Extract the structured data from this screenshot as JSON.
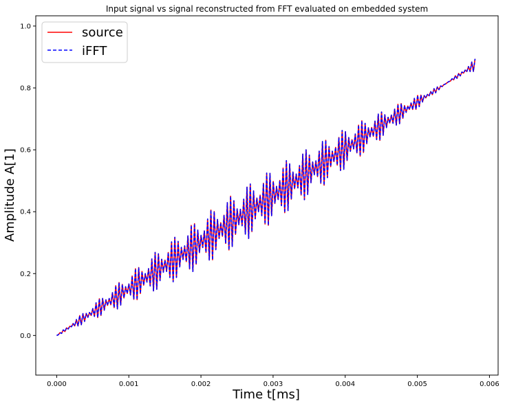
{
  "chart_data": {
    "type": "line",
    "title": "Input signal vs signal reconstructed from FFT evaluated on embedded system",
    "xlabel": "Time t[ms]",
    "ylabel": "Amplitude A[1]",
    "xlim": [
      -0.00029,
      0.00612
    ],
    "ylim": [
      -0.128,
      1.0331
    ],
    "xticks": [
      0.0,
      0.001,
      0.002,
      0.003,
      0.004,
      0.005,
      0.006
    ],
    "xtick_labels": [
      "0.000",
      "0.001",
      "0.002",
      "0.003",
      "0.004",
      "0.005",
      "0.006"
    ],
    "yticks": [
      0.0,
      0.2,
      0.4,
      0.6,
      0.8,
      1.0
    ],
    "ytick_labels": [
      "0.0",
      "0.2",
      "0.4",
      "0.6",
      "0.8",
      "1.0"
    ],
    "grid": false,
    "legend_position": "top-left",
    "signal_model": {
      "x_start": 0.0,
      "x_end": 0.0058,
      "sample_count": 256,
      "trend_start": 0.0,
      "trend_end": 0.875,
      "fast_component": {
        "amplitude": 0.055,
        "period": 4.53e-05
      },
      "beat_component": {
        "amplitude": 0.04,
        "period": 0.00026
      }
    },
    "series": [
      {
        "name": "source",
        "color": "#ff0000",
        "style": "solid",
        "width": 1.6
      },
      {
        "name": "iFFT",
        "color": "#0000ff",
        "style": "dashed",
        "width": 1.6
      }
    ]
  },
  "legend": {
    "items": [
      {
        "label": "source",
        "color": "#ff0000",
        "style": "solid"
      },
      {
        "label": "iFFT",
        "color": "#0000ff",
        "style": "dashed"
      }
    ]
  }
}
